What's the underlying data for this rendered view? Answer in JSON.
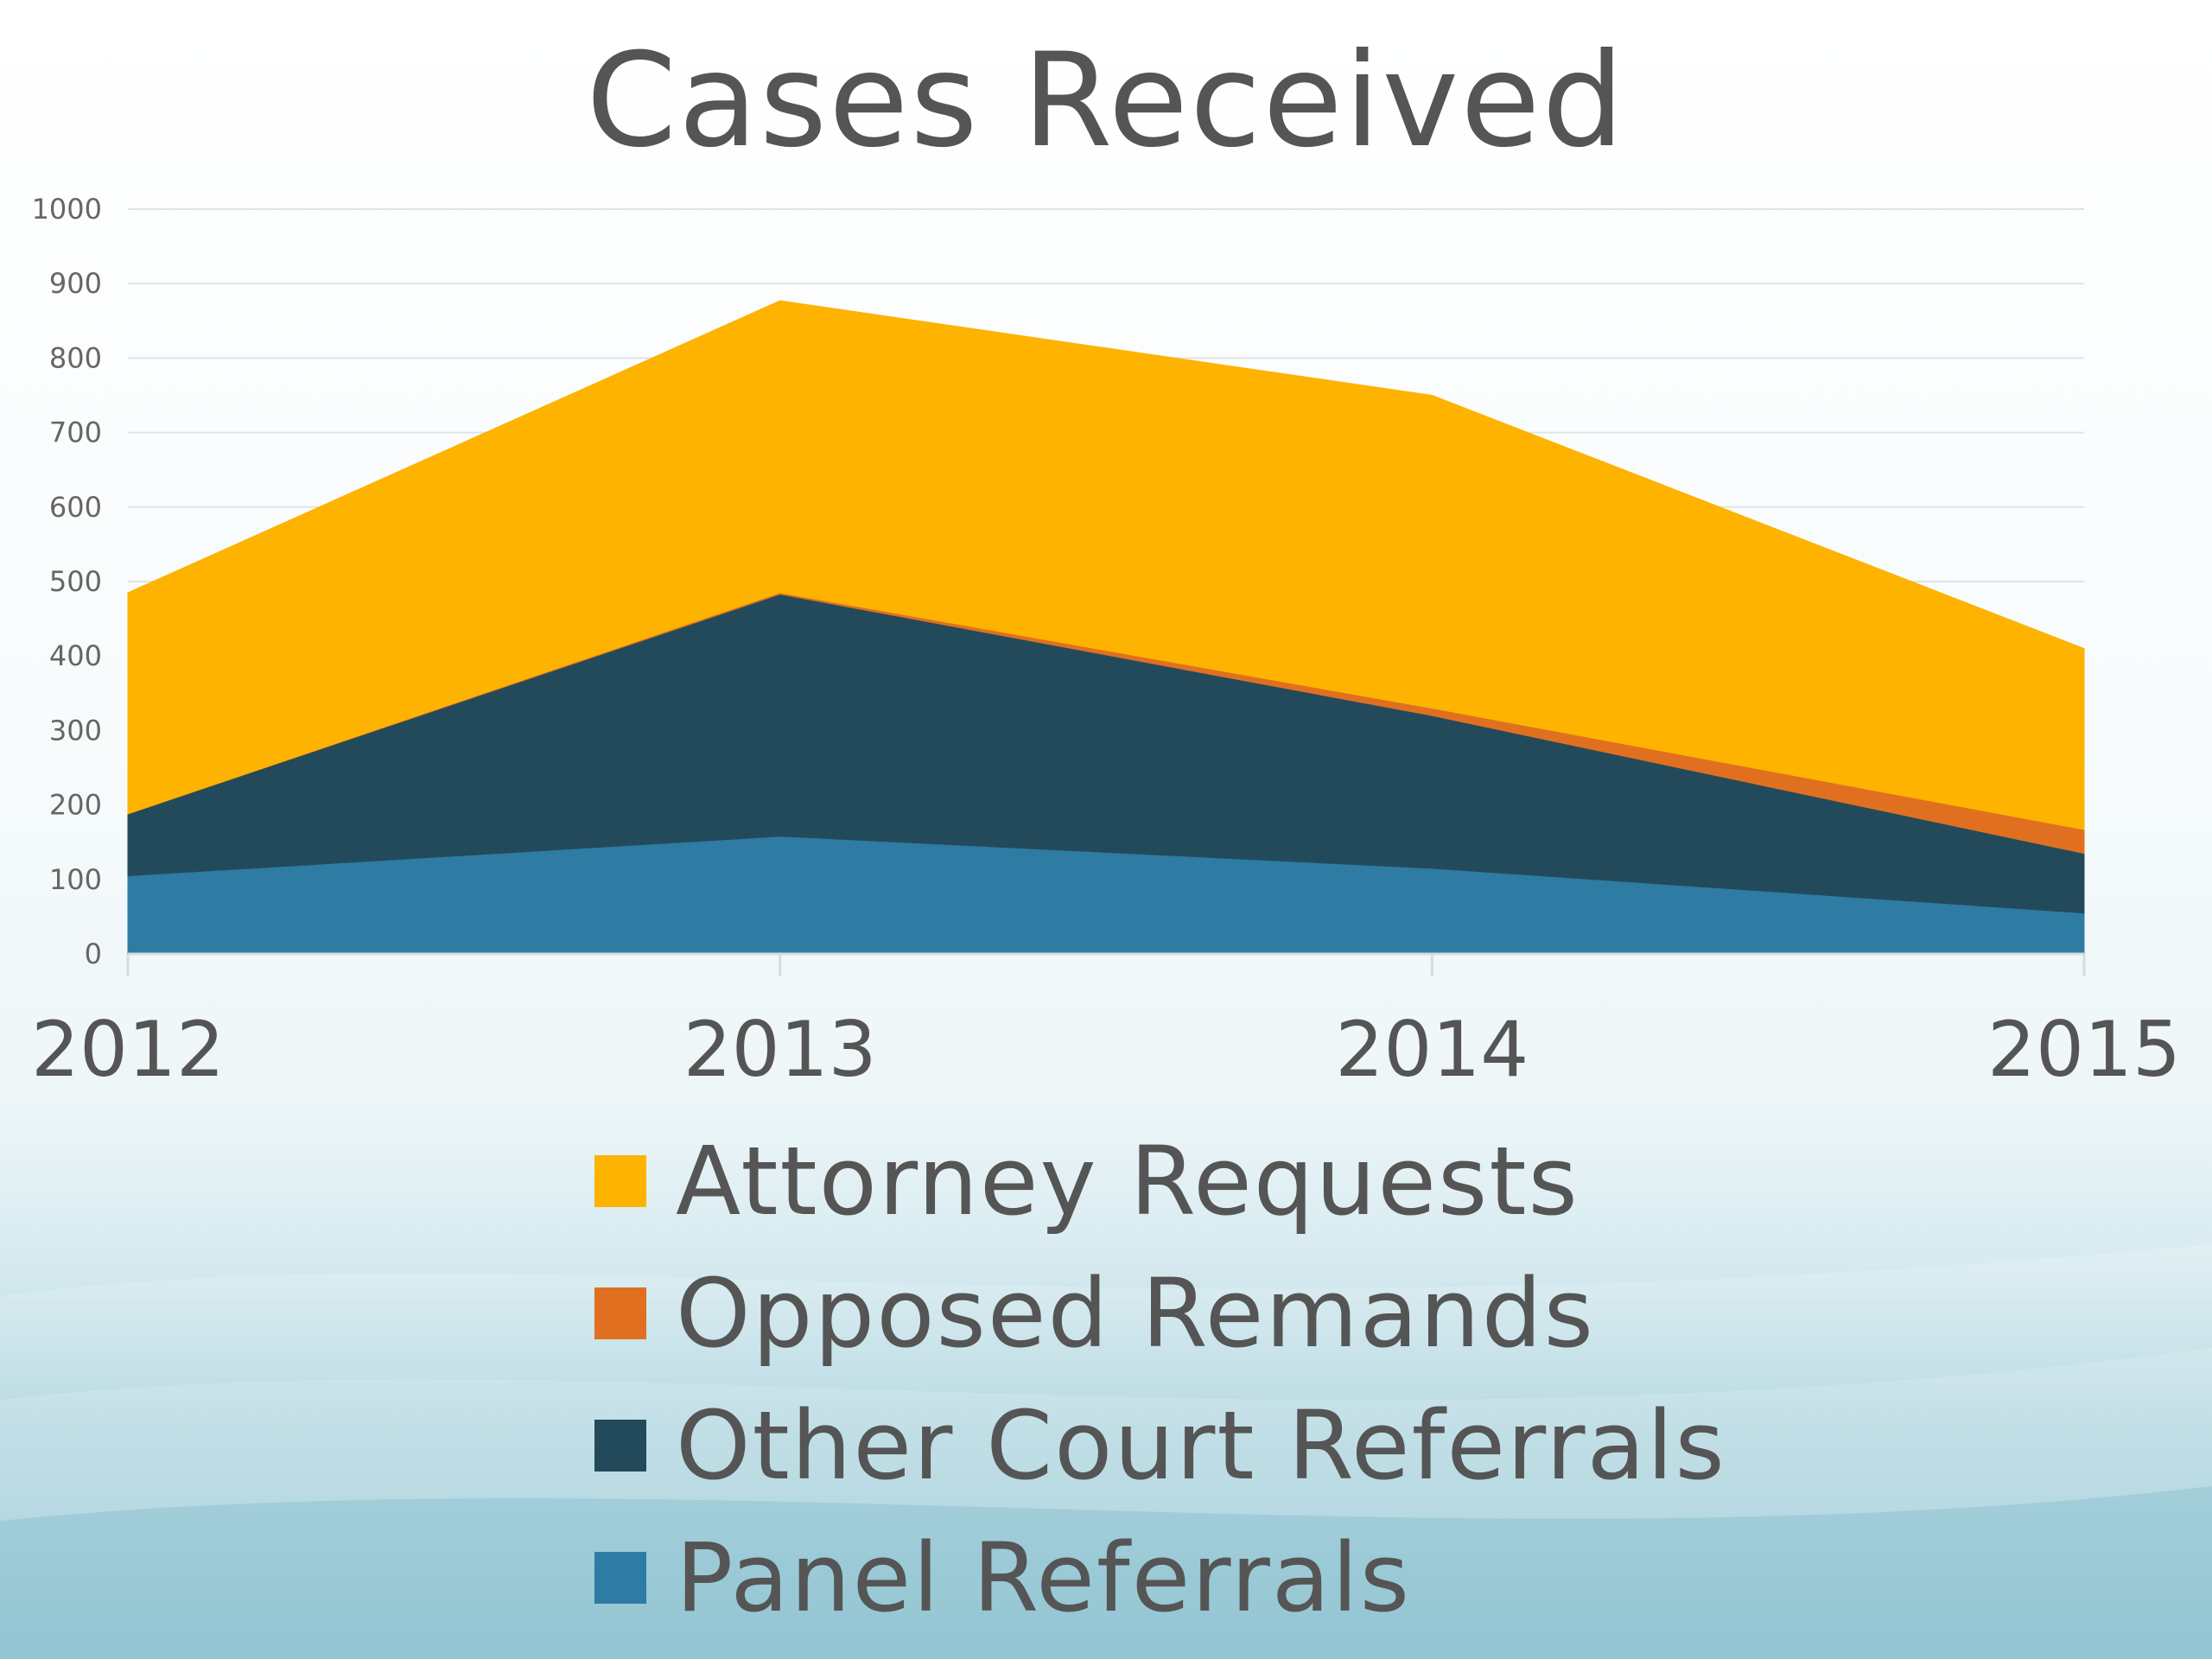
{
  "title": "Cases Received",
  "chart_data": {
    "type": "area",
    "stacked": true,
    "categories": [
      "2012",
      "2013",
      "2014",
      "2015"
    ],
    "series": [
      {
        "name": "Panel Referrals",
        "color": "#2e7ba3",
        "values": [
          105,
          158,
          115,
          55
        ]
      },
      {
        "name": "Other Court Referrals",
        "color": "#234a5b",
        "values": [
          83,
          325,
          205,
          80
        ]
      },
      {
        "name": "Opposed Remands",
        "color": "#e07020",
        "values": [
          0,
          2,
          10,
          32
        ]
      },
      {
        "name": "Attorney Requests",
        "color": "#fdb300",
        "values": [
          297,
          392,
          420,
          243
        ]
      }
    ],
    "ylim": [
      0,
      1000
    ],
    "yticks": [
      0,
      100,
      200,
      300,
      400,
      500,
      600,
      700,
      800,
      900,
      1000
    ],
    "grid": true,
    "legend_position": "bottom",
    "xlabel": "",
    "ylabel": ""
  },
  "legend": [
    {
      "label": "Attorney Requests",
      "color": "#fdb300"
    },
    {
      "label": "Opposed Remands",
      "color": "#e07020"
    },
    {
      "label": "Other Court Referrals",
      "color": "#234a5b"
    },
    {
      "label": "Panel Referrals",
      "color": "#2e7ba3"
    }
  ]
}
